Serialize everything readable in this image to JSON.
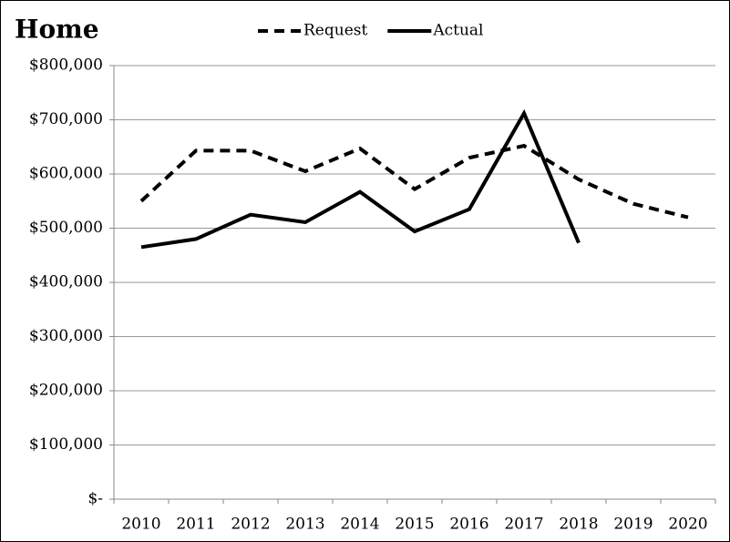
{
  "chart_data": {
    "type": "line",
    "title": "Home",
    "categories": [
      "2010",
      "2011",
      "2012",
      "2013",
      "2014",
      "2015",
      "2016",
      "2017",
      "2018",
      "2019",
      "2020"
    ],
    "series": [
      {
        "name": "Request",
        "color": "#000000",
        "style": "dashed",
        "values": [
          550000,
          643000,
          643000,
          605000,
          647000,
          572000,
          630000,
          652000,
          590000,
          545000,
          520000
        ]
      },
      {
        "name": "Actual",
        "color": "#000000",
        "style": "solid",
        "values": [
          465000,
          480000,
          525000,
          511000,
          567000,
          494000,
          535000,
          712000,
          473000,
          null,
          null
        ]
      }
    ],
    "ylim": [
      0,
      800000
    ],
    "yticks": [
      {
        "value": 0,
        "label": "$-"
      },
      {
        "value": 100000,
        "label": "$100,000"
      },
      {
        "value": 200000,
        "label": "$200,000"
      },
      {
        "value": 300000,
        "label": "$300,000"
      },
      {
        "value": 400000,
        "label": "$400,000"
      },
      {
        "value": 500000,
        "label": "$500,000"
      },
      {
        "value": 600000,
        "label": "$600,000"
      },
      {
        "value": 700000,
        "label": "$700,000"
      },
      {
        "value": 800000,
        "label": "$800,000"
      }
    ],
    "grid": true,
    "legend": "top"
  }
}
